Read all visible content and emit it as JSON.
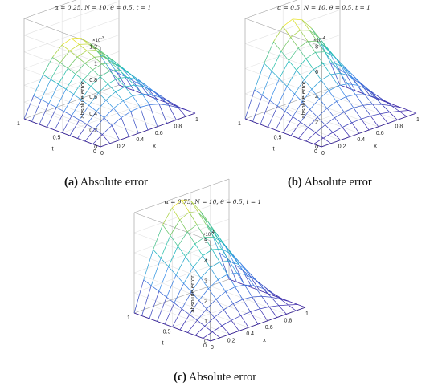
{
  "chart_data": [
    {
      "type": "surface",
      "title": "α = 0.25, N = 10, θ = 0.5, t = 1",
      "xlabel": "x",
      "ylabel": "t",
      "zlabel": "absolute error",
      "exponent_base": "×10",
      "exponent_power": "-3",
      "x_ticks": [
        "0",
        "0.2",
        "0.4",
        "0.6",
        "0.8",
        "1"
      ],
      "t_ticks": [
        "0",
        "0.5",
        "1"
      ],
      "z_ticks": [
        "0",
        "0.2",
        "0.4",
        "0.6",
        "0.8",
        "1",
        "1.2"
      ],
      "xlim": [
        0,
        1
      ],
      "tlim": [
        0,
        1
      ],
      "zlim": [
        0,
        1.2
      ],
      "grid_n": 10,
      "peak": 0.76,
      "t_shape": "sqrt",
      "caption_label": "(a)",
      "caption_text": "Absolute error"
    },
    {
      "type": "surface",
      "title": "α = 0.5, N = 10, θ = 0.5, t = 1",
      "xlabel": "x",
      "ylabel": "t",
      "zlabel": "absolute error",
      "exponent_base": "×10",
      "exponent_power": "-4",
      "x_ticks": [
        "0",
        "0.2",
        "0.4",
        "0.6",
        "0.8",
        "1"
      ],
      "t_ticks": [
        "0",
        "0.5",
        "1"
      ],
      "z_ticks": [
        "0",
        "2",
        "4",
        "6",
        "8"
      ],
      "xlim": [
        0,
        1
      ],
      "tlim": [
        0,
        1
      ],
      "zlim": [
        0,
        8
      ],
      "grid_n": 10,
      "peak": 6.6,
      "t_shape": "linear",
      "caption_label": "(b)",
      "caption_text": "Absolute error"
    },
    {
      "type": "surface",
      "title": "α = 0.75, N = 10, θ = 0.5, t = 1",
      "xlabel": "x",
      "ylabel": "t",
      "zlabel": "absolute error",
      "exponent_base": "×10",
      "exponent_power": "-4",
      "x_ticks": [
        "0",
        "0.2",
        "0.4",
        "0.6",
        "0.8",
        "1"
      ],
      "t_ticks": [
        "0",
        "0.5",
        "1"
      ],
      "z_ticks": [
        "0",
        "1",
        "2",
        "3",
        "4",
        "5"
      ],
      "xlim": [
        0,
        1
      ],
      "tlim": [
        0,
        1
      ],
      "zlim": [
        0,
        5
      ],
      "grid_n": 10,
      "peak": 4.8,
      "t_shape": "linear",
      "caption_label": "(c)",
      "caption_text": "Absolute error"
    }
  ]
}
